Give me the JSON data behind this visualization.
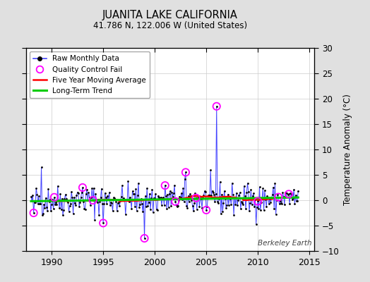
{
  "title": "JUANITA LAKE CALIFORNIA",
  "subtitle": "41.786 N, 122.006 W (United States)",
  "ylabel": "Temperature Anomaly (°C)",
  "watermark": "Berkeley Earth",
  "xlim": [
    1987.5,
    2015.5
  ],
  "ylim": [
    -10,
    30
  ],
  "yticks": [
    -10,
    -5,
    0,
    5,
    10,
    15,
    20,
    25,
    30
  ],
  "xticks": [
    1990,
    1995,
    2000,
    2005,
    2010,
    2015
  ],
  "bg_color": "#e0e0e0",
  "plot_bg_color": "#ffffff",
  "raw_color": "#4444ff",
  "raw_dot_color": "#000000",
  "qc_fail_color": "#ff00ff",
  "moving_avg_color": "#ff0000",
  "trend_color": "#00cc00",
  "seed": 42,
  "n_points": 312,
  "start_year": 1988.0
}
